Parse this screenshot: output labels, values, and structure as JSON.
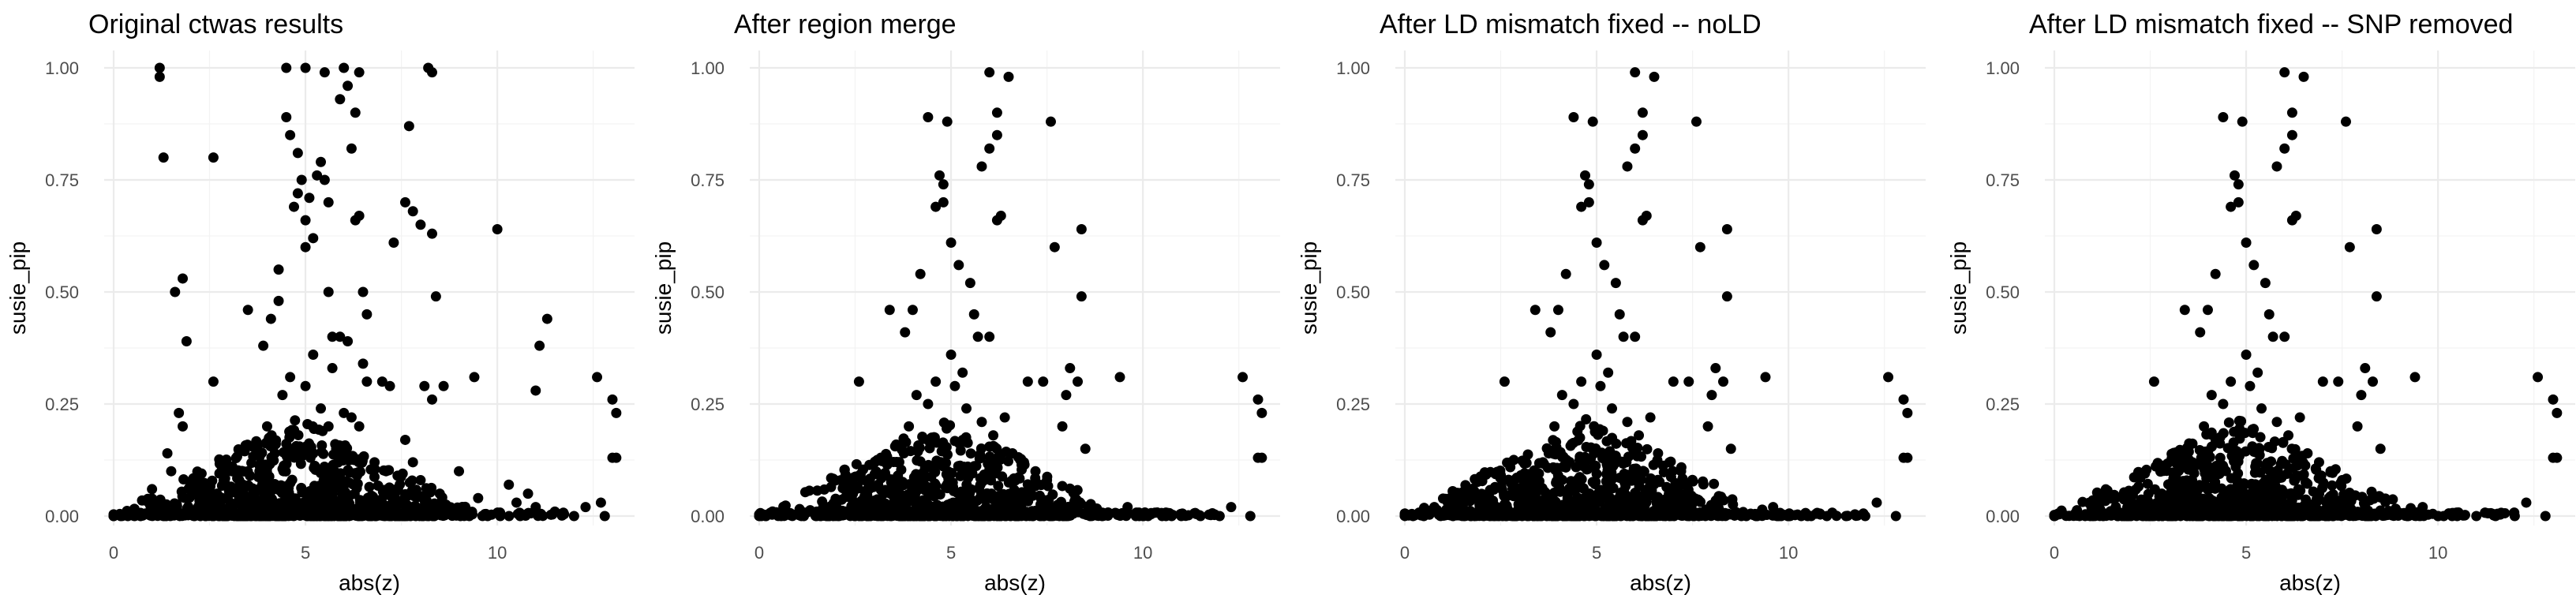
{
  "chart_data": [
    {
      "type": "scatter",
      "title": "Original ctwas results",
      "xlabel": "abs(z)",
      "ylabel": "susie_pip",
      "xlim": [
        0,
        13.3
      ],
      "ylim": [
        0,
        1.0
      ],
      "x_ticks": [
        0,
        5,
        10
      ],
      "y_ticks": [
        0.0,
        0.25,
        0.5,
        0.75,
        1.0
      ],
      "y_tick_labels": [
        "0.00",
        "0.25",
        "0.50",
        "0.75",
        "1.00"
      ],
      "grid": true,
      "point_color": "#000000",
      "points": [
        [
          1.2,
          1.0
        ],
        [
          1.2,
          0.98
        ],
        [
          1.3,
          0.8
        ],
        [
          2.6,
          0.8
        ],
        [
          1.6,
          0.5
        ],
        [
          1.8,
          0.53
        ],
        [
          1.9,
          0.39
        ],
        [
          1.7,
          0.23
        ],
        [
          1.8,
          0.2
        ],
        [
          2.6,
          0.3
        ],
        [
          1.0,
          0.06
        ],
        [
          1.4,
          0.14
        ],
        [
          1.5,
          0.1
        ],
        [
          3.5,
          0.46
        ],
        [
          3.9,
          0.38
        ],
        [
          4.1,
          0.44
        ],
        [
          4.3,
          0.55
        ],
        [
          4.3,
          0.48
        ],
        [
          4.5,
          1.0
        ],
        [
          4.5,
          0.89
        ],
        [
          4.6,
          0.85
        ],
        [
          4.7,
          0.69
        ],
        [
          4.8,
          0.72
        ],
        [
          4.8,
          0.81
        ],
        [
          4.9,
          0.75
        ],
        [
          5.0,
          1.0
        ],
        [
          5.0,
          0.66
        ],
        [
          5.1,
          0.71
        ],
        [
          5.0,
          0.6
        ],
        [
          5.2,
          0.62
        ],
        [
          5.3,
          0.76
        ],
        [
          5.4,
          0.79
        ],
        [
          5.5,
          0.99
        ],
        [
          5.5,
          0.75
        ],
        [
          5.6,
          0.7
        ],
        [
          5.6,
          0.5
        ],
        [
          5.7,
          0.4
        ],
        [
          5.7,
          0.33
        ],
        [
          5.9,
          0.93
        ],
        [
          5.9,
          0.4
        ],
        [
          6.0,
          1.0
        ],
        [
          6.1,
          0.96
        ],
        [
          6.1,
          0.39
        ],
        [
          6.2,
          0.82
        ],
        [
          6.3,
          0.66
        ],
        [
          6.3,
          0.9
        ],
        [
          6.4,
          0.99
        ],
        [
          6.4,
          0.67
        ],
        [
          6.5,
          0.5
        ],
        [
          6.5,
          0.34
        ],
        [
          6.6,
          0.45
        ],
        [
          6.6,
          0.3
        ],
        [
          7.0,
          0.3
        ],
        [
          7.2,
          0.29
        ],
        [
          7.3,
          0.61
        ],
        [
          7.6,
          0.7
        ],
        [
          7.6,
          0.17
        ],
        [
          7.7,
          0.87
        ],
        [
          7.8,
          0.68
        ],
        [
          8.0,
          0.65
        ],
        [
          8.2,
          1.0
        ],
        [
          8.3,
          0.99
        ],
        [
          8.3,
          0.63
        ],
        [
          8.4,
          0.49
        ],
        [
          8.1,
          0.29
        ],
        [
          8.3,
          0.26
        ],
        [
          8.6,
          0.29
        ],
        [
          9.4,
          0.31
        ],
        [
          10.0,
          0.64
        ],
        [
          10.3,
          0.07
        ],
        [
          11.0,
          0.28
        ],
        [
          11.1,
          0.38
        ],
        [
          11.3,
          0.44
        ],
        [
          11.5,
          0.01
        ],
        [
          12.0,
          0.0
        ],
        [
          12.3,
          0.02
        ],
        [
          12.6,
          0.31
        ],
        [
          12.7,
          0.03
        ],
        [
          13.0,
          0.26
        ],
        [
          13.1,
          0.23
        ],
        [
          13.0,
          0.13
        ],
        [
          13.1,
          0.13
        ],
        [
          12.8,
          0.0
        ],
        [
          3.0,
          0.06
        ],
        [
          3.3,
          0.05
        ],
        [
          2.9,
          0.12
        ],
        [
          3.8,
          0.1
        ],
        [
          4.0,
          0.2
        ],
        [
          4.2,
          0.14
        ],
        [
          4.4,
          0.27
        ],
        [
          4.6,
          0.31
        ],
        [
          5.0,
          0.29
        ],
        [
          5.2,
          0.36
        ],
        [
          5.4,
          0.24
        ],
        [
          5.6,
          0.2
        ],
        [
          5.8,
          0.15
        ],
        [
          6.0,
          0.23
        ],
        [
          6.2,
          0.22
        ],
        [
          6.4,
          0.2
        ],
        [
          6.8,
          0.12
        ],
        [
          7.1,
          0.1
        ],
        [
          7.4,
          0.09
        ],
        [
          7.8,
          0.12
        ],
        [
          8.0,
          0.08
        ],
        [
          8.5,
          0.05
        ],
        [
          9.0,
          0.1
        ],
        [
          9.5,
          0.04
        ],
        [
          10.5,
          0.03
        ],
        [
          10.8,
          0.05
        ],
        [
          11.0,
          0.02
        ]
      ]
    },
    {
      "type": "scatter",
      "title": "After region merge",
      "xlabel": "abs(z)",
      "ylabel": "susie_pip",
      "xlim": [
        0,
        13.3
      ],
      "ylim": [
        0,
        1.0
      ],
      "x_ticks": [
        0,
        5,
        10
      ],
      "y_ticks": [
        0.0,
        0.25,
        0.5,
        0.75,
        1.0
      ],
      "y_tick_labels": [
        "0.00",
        "0.25",
        "0.50",
        "0.75",
        "1.00"
      ],
      "grid": true,
      "point_color": "#000000",
      "points": [
        [
          6.0,
          0.99
        ],
        [
          6.5,
          0.98
        ],
        [
          4.4,
          0.89
        ],
        [
          4.9,
          0.88
        ],
        [
          6.2,
          0.9
        ],
        [
          6.2,
          0.85
        ],
        [
          6.0,
          0.82
        ],
        [
          7.6,
          0.88
        ],
        [
          5.8,
          0.78
        ],
        [
          4.7,
          0.76
        ],
        [
          4.8,
          0.74
        ],
        [
          6.2,
          0.66
        ],
        [
          6.3,
          0.67
        ],
        [
          4.6,
          0.69
        ],
        [
          4.8,
          0.7
        ],
        [
          8.4,
          0.64
        ],
        [
          7.7,
          0.6
        ],
        [
          5.0,
          0.61
        ],
        [
          5.2,
          0.56
        ],
        [
          5.5,
          0.52
        ],
        [
          3.4,
          0.46
        ],
        [
          3.8,
          0.41
        ],
        [
          4.0,
          0.46
        ],
        [
          4.2,
          0.54
        ],
        [
          8.4,
          0.49
        ],
        [
          5.6,
          0.45
        ],
        [
          5.7,
          0.4
        ],
        [
          6.0,
          0.4
        ],
        [
          5.0,
          0.36
        ],
        [
          5.3,
          0.32
        ],
        [
          2.6,
          0.3
        ],
        [
          7.0,
          0.3
        ],
        [
          7.4,
          0.3
        ],
        [
          8.1,
          0.33
        ],
        [
          8.3,
          0.3
        ],
        [
          9.4,
          0.31
        ],
        [
          12.6,
          0.31
        ],
        [
          13.0,
          0.26
        ],
        [
          13.1,
          0.23
        ],
        [
          13.0,
          0.13
        ],
        [
          13.1,
          0.13
        ],
        [
          12.8,
          0.0
        ],
        [
          12.3,
          0.02
        ],
        [
          12.0,
          0.0
        ],
        [
          11.5,
          0.0
        ],
        [
          11.0,
          0.0
        ],
        [
          10.5,
          0.0
        ],
        [
          10.0,
          0.0
        ],
        [
          9.6,
          0.02
        ],
        [
          7.9,
          0.2
        ],
        [
          8.0,
          0.27
        ],
        [
          8.5,
          0.15
        ],
        [
          3.6,
          0.12
        ],
        [
          3.9,
          0.2
        ],
        [
          4.1,
          0.27
        ],
        [
          4.4,
          0.25
        ],
        [
          4.6,
          0.3
        ],
        [
          5.1,
          0.29
        ],
        [
          5.4,
          0.24
        ],
        [
          5.8,
          0.21
        ],
        [
          6.1,
          0.18
        ],
        [
          6.4,
          0.22
        ],
        [
          6.6,
          0.14
        ],
        [
          6.9,
          0.12
        ],
        [
          7.2,
          0.1
        ],
        [
          7.5,
          0.08
        ],
        [
          2.8,
          0.05
        ],
        [
          3.1,
          0.07
        ],
        [
          1.5,
          0.01
        ],
        [
          2.0,
          0.02
        ]
      ]
    },
    {
      "type": "scatter",
      "title": "After LD mismatch fixed -- noLD",
      "xlabel": "abs(z)",
      "ylabel": "susie_pip",
      "xlim": [
        0,
        13.3
      ],
      "ylim": [
        0,
        1.0
      ],
      "x_ticks": [
        0,
        5,
        10
      ],
      "y_ticks": [
        0.0,
        0.25,
        0.5,
        0.75,
        1.0
      ],
      "y_tick_labels": [
        "0.00",
        "0.25",
        "0.50",
        "0.75",
        "1.00"
      ],
      "grid": true,
      "point_color": "#000000",
      "points": [
        [
          6.0,
          0.99
        ],
        [
          6.5,
          0.98
        ],
        [
          4.4,
          0.89
        ],
        [
          4.9,
          0.88
        ],
        [
          6.2,
          0.9
        ],
        [
          6.2,
          0.85
        ],
        [
          6.0,
          0.82
        ],
        [
          7.6,
          0.88
        ],
        [
          5.8,
          0.78
        ],
        [
          4.7,
          0.76
        ],
        [
          4.8,
          0.74
        ],
        [
          6.2,
          0.66
        ],
        [
          6.3,
          0.67
        ],
        [
          4.6,
          0.69
        ],
        [
          4.8,
          0.7
        ],
        [
          8.4,
          0.64
        ],
        [
          7.7,
          0.6
        ],
        [
          5.0,
          0.61
        ],
        [
          5.2,
          0.56
        ],
        [
          5.5,
          0.52
        ],
        [
          3.4,
          0.46
        ],
        [
          3.8,
          0.41
        ],
        [
          4.0,
          0.46
        ],
        [
          4.2,
          0.54
        ],
        [
          8.4,
          0.49
        ],
        [
          5.6,
          0.45
        ],
        [
          5.7,
          0.4
        ],
        [
          6.0,
          0.4
        ],
        [
          5.0,
          0.36
        ],
        [
          5.3,
          0.32
        ],
        [
          2.6,
          0.3
        ],
        [
          7.0,
          0.3
        ],
        [
          7.4,
          0.3
        ],
        [
          8.1,
          0.33
        ],
        [
          8.3,
          0.3
        ],
        [
          9.4,
          0.31
        ],
        [
          12.6,
          0.31
        ],
        [
          13.0,
          0.26
        ],
        [
          13.1,
          0.23
        ],
        [
          13.0,
          0.13
        ],
        [
          13.1,
          0.13
        ],
        [
          12.8,
          0.0
        ],
        [
          12.3,
          0.03
        ],
        [
          12.0,
          0.0
        ],
        [
          11.5,
          0.0
        ],
        [
          11.0,
          0.0
        ],
        [
          10.5,
          0.0
        ],
        [
          10.0,
          0.0
        ],
        [
          9.6,
          0.02
        ],
        [
          7.9,
          0.2
        ],
        [
          8.0,
          0.27
        ],
        [
          8.5,
          0.15
        ],
        [
          3.6,
          0.12
        ],
        [
          3.9,
          0.2
        ],
        [
          4.1,
          0.27
        ],
        [
          4.4,
          0.25
        ],
        [
          4.6,
          0.3
        ],
        [
          5.1,
          0.29
        ],
        [
          5.4,
          0.24
        ],
        [
          5.8,
          0.21
        ],
        [
          6.1,
          0.18
        ],
        [
          6.4,
          0.22
        ],
        [
          6.6,
          0.14
        ],
        [
          6.9,
          0.12
        ],
        [
          7.2,
          0.1
        ],
        [
          7.5,
          0.08
        ],
        [
          2.8,
          0.05
        ],
        [
          3.1,
          0.07
        ],
        [
          1.5,
          0.01
        ],
        [
          2.0,
          0.02
        ]
      ]
    },
    {
      "type": "scatter",
      "title": "After LD mismatch fixed -- SNP removed",
      "xlabel": "abs(z)",
      "ylabel": "susie_pip",
      "xlim": [
        0,
        13.3
      ],
      "ylim": [
        0,
        1.0
      ],
      "x_ticks": [
        0,
        5,
        10
      ],
      "y_ticks": [
        0.0,
        0.25,
        0.5,
        0.75,
        1.0
      ],
      "y_tick_labels": [
        "0.00",
        "0.25",
        "0.50",
        "0.75",
        "1.00"
      ],
      "grid": true,
      "point_color": "#000000",
      "points": [
        [
          6.0,
          0.99
        ],
        [
          6.5,
          0.98
        ],
        [
          4.4,
          0.89
        ],
        [
          4.9,
          0.88
        ],
        [
          6.2,
          0.9
        ],
        [
          6.2,
          0.85
        ],
        [
          6.0,
          0.82
        ],
        [
          7.6,
          0.88
        ],
        [
          5.8,
          0.78
        ],
        [
          4.7,
          0.76
        ],
        [
          4.8,
          0.74
        ],
        [
          6.2,
          0.66
        ],
        [
          6.3,
          0.67
        ],
        [
          4.6,
          0.69
        ],
        [
          4.8,
          0.7
        ],
        [
          8.4,
          0.64
        ],
        [
          7.7,
          0.6
        ],
        [
          5.0,
          0.61
        ],
        [
          5.2,
          0.56
        ],
        [
          5.5,
          0.52
        ],
        [
          3.4,
          0.46
        ],
        [
          3.8,
          0.41
        ],
        [
          4.0,
          0.46
        ],
        [
          4.2,
          0.54
        ],
        [
          8.4,
          0.49
        ],
        [
          5.6,
          0.45
        ],
        [
          5.7,
          0.4
        ],
        [
          6.0,
          0.4
        ],
        [
          5.0,
          0.36
        ],
        [
          5.3,
          0.32
        ],
        [
          2.6,
          0.3
        ],
        [
          7.0,
          0.3
        ],
        [
          7.4,
          0.3
        ],
        [
          8.1,
          0.33
        ],
        [
          8.3,
          0.3
        ],
        [
          9.4,
          0.31
        ],
        [
          12.6,
          0.31
        ],
        [
          13.0,
          0.26
        ],
        [
          13.1,
          0.23
        ],
        [
          13.0,
          0.13
        ],
        [
          13.1,
          0.13
        ],
        [
          12.8,
          0.0
        ],
        [
          12.3,
          0.03
        ],
        [
          12.0,
          0.0
        ],
        [
          11.5,
          0.0
        ],
        [
          11.0,
          0.0
        ],
        [
          10.5,
          0.0
        ],
        [
          10.0,
          0.0
        ],
        [
          9.6,
          0.02
        ],
        [
          7.9,
          0.2
        ],
        [
          8.0,
          0.27
        ],
        [
          8.5,
          0.15
        ],
        [
          3.6,
          0.12
        ],
        [
          3.9,
          0.2
        ],
        [
          4.1,
          0.27
        ],
        [
          4.4,
          0.25
        ],
        [
          4.6,
          0.3
        ],
        [
          5.1,
          0.29
        ],
        [
          5.4,
          0.24
        ],
        [
          5.8,
          0.21
        ],
        [
          6.1,
          0.18
        ],
        [
          6.4,
          0.22
        ],
        [
          6.6,
          0.14
        ],
        [
          6.9,
          0.12
        ],
        [
          7.2,
          0.1
        ],
        [
          7.5,
          0.08
        ],
        [
          2.8,
          0.05
        ],
        [
          3.1,
          0.07
        ],
        [
          1.5,
          0.01
        ],
        [
          2.0,
          0.02
        ]
      ]
    }
  ]
}
